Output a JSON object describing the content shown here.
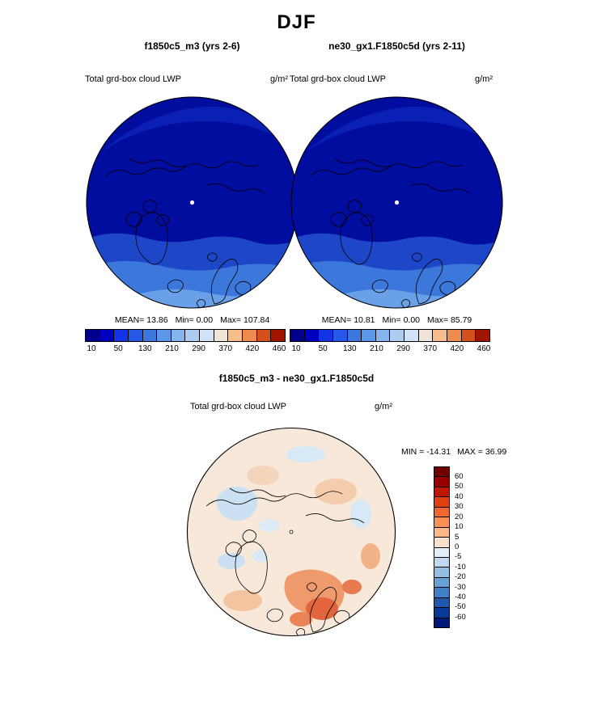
{
  "title": "DJF",
  "panels": [
    {
      "subtitle": "f1850c5_m3 (yrs 2-6)",
      "field_label": "Total grd-box cloud LWP",
      "units": "g/m²",
      "stats": {
        "mean_label": "MEAN=",
        "mean": "13.86",
        "min_label": "Min=",
        "min": "0.00",
        "max_label": "Max=",
        "max": "107.84"
      },
      "colorbar_ticks": [
        "10",
        "50",
        "130",
        "210",
        "290",
        "370",
        "420",
        "460"
      ]
    },
    {
      "subtitle": "ne30_gx1.F1850c5d (yrs 2-11)",
      "field_label": "Total grd-box cloud LWP",
      "units": "g/m²",
      "stats": {
        "mean_label": "MEAN=",
        "mean": "10.81",
        "min_label": "Min=",
        "min": "0.00",
        "max_label": "Max=",
        "max": "85.79"
      },
      "colorbar_ticks": [
        "10",
        "50",
        "130",
        "210",
        "290",
        "370",
        "420",
        "460"
      ]
    }
  ],
  "lwp_colorbar_colors": [
    "#00008B",
    "#0000C0",
    "#1432E6",
    "#2858E8",
    "#3C78DC",
    "#5C96E6",
    "#84B4EE",
    "#ACCCF2",
    "#D2E2F5",
    "#F0E4D8",
    "#F5BE8C",
    "#EE8C50",
    "#D6501E",
    "#A01400"
  ],
  "diff": {
    "title": "f1850c5_m3 - ne30_gx1.F1850c5d",
    "field_label": "Total grd-box cloud LWP",
    "units": "g/m²",
    "range": {
      "min_label": "MIN =",
      "min": "-14.31",
      "max_label": "MAX =",
      "max": "36.99"
    },
    "colorbar_labels": [
      "60",
      "50",
      "40",
      "30",
      "20",
      "10",
      "5",
      "0",
      "-5",
      "-10",
      "-20",
      "-30",
      "-40",
      "-50",
      "-60"
    ],
    "colorbar_colors": [
      "#700000",
      "#980000",
      "#C01800",
      "#E04010",
      "#F06830",
      "#F89058",
      "#FBB888",
      "#FAE0CC",
      "#E4EEF8",
      "#C0D8F0",
      "#94BEE4",
      "#68A0D8",
      "#4080C8",
      "#2058B0",
      "#083898",
      "#001878"
    ]
  },
  "chart_data": [
    {
      "type": "heatmap",
      "subtype": "polar-stereographic-map",
      "region": "Arctic (north polar cap)",
      "season": "DJF",
      "title": "f1850c5_m3 (yrs 2-6)",
      "variable": "Total grd-box cloud LWP",
      "units": "g/m2",
      "stats": {
        "mean": 13.86,
        "min": 0.0,
        "max": 107.84
      },
      "contour_levels": [
        10,
        50,
        130,
        210,
        290,
        370,
        420,
        460
      ],
      "palette": "blue-to-red sequential, blues dominate",
      "pattern": "lowest LWP (dark navy, <50 g/m2) over the central Arctic and Siberia; values increase toward the map edge with medium and lighter blues (50-210 g/m2) over the North Atlantic, Scandinavia and lower latitudes"
    },
    {
      "type": "heatmap",
      "subtype": "polar-stereographic-map",
      "region": "Arctic (north polar cap)",
      "season": "DJF",
      "title": "ne30_gx1.F1850c5d (yrs 2-11)",
      "variable": "Total grd-box cloud LWP",
      "units": "g/m2",
      "stats": {
        "mean": 10.81,
        "min": 0.0,
        "max": 85.79
      },
      "contour_levels": [
        10,
        50,
        130,
        210,
        290,
        370,
        420,
        460
      ],
      "palette": "blue-to-red sequential, blues dominate",
      "pattern": "same spatial structure as the left panel but slightly lower values overall; lighter-blue band along the southern map edge is narrower"
    },
    {
      "type": "heatmap",
      "subtype": "polar-stereographic-map",
      "region": "Arctic (north polar cap)",
      "season": "DJF",
      "title": "f1850c5_m3 - ne30_gx1.F1850c5d",
      "variable": "Total grd-box cloud LWP difference",
      "units": "g/m2",
      "stats": {
        "min": -14.31,
        "max": 36.99
      },
      "contour_levels": [
        -60,
        -50,
        -40,
        -30,
        -20,
        -10,
        -5,
        0,
        5,
        10,
        20,
        30,
        40,
        50,
        60
      ],
      "palette": "diverging red (positive) / blue (negative)",
      "pattern": "mostly weak positive differences (pale peach/orange, 0-10 g/m2) across the Arctic; stronger positive differences (orange/red, 10-40 g/m2) over the Norwegian Sea and Scandinavia; scattered weak negative patches (pale blue, 0 to -10 g/m2) over northern Canada, the Bering side and near the pole"
    }
  ]
}
